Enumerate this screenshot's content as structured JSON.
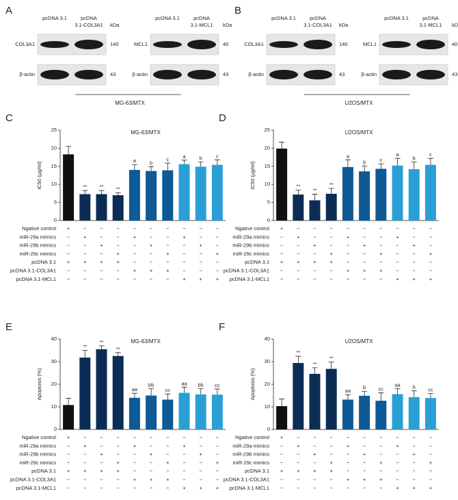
{
  "blots": [
    {
      "panel": "A",
      "title": "MG-63/MTX",
      "groups": [
        {
          "columns": [
            [
              "pcDNA 3.1"
            ],
            [
              "pcDNA",
              "3.1-COL3A1"
            ]
          ],
          "unit": "kDa",
          "rows": [
            {
              "label": "COL3A1",
              "kda": "140"
            },
            {
              "label": "β-actin",
              "kda": "43"
            }
          ]
        },
        {
          "columns": [
            [
              "pcDNA 3.1"
            ],
            [
              "pcDNA",
              "3.1-MCL1"
            ]
          ],
          "unit": "kDa",
          "rows": [
            {
              "label": "MCL1",
              "kda": "40"
            },
            {
              "label": "β-actin",
              "kda": "43"
            }
          ]
        }
      ]
    },
    {
      "panel": "B",
      "title": "U2OS/MTX",
      "groups": [
        {
          "columns": [
            [
              "pcDNA 3.1"
            ],
            [
              "pcDNA",
              "3.1-COL3A1"
            ]
          ],
          "unit": "kDa",
          "rows": [
            {
              "label": "COL3A1",
              "kda": "140"
            },
            {
              "label": "β-actin",
              "kda": "43"
            }
          ]
        },
        {
          "columns": [
            [
              "pcDNA 3.1"
            ],
            [
              "pcDNA",
              "3.1-MCL1"
            ]
          ],
          "unit": "kDa",
          "rows": [
            {
              "label": "MCL1",
              "kda": "40"
            },
            {
              "label": "β-actin",
              "kda": "43"
            }
          ]
        }
      ]
    }
  ],
  "chart_data": [
    {
      "type": "bar",
      "panel": "C",
      "title": "MG-63/MTX",
      "ylabel": "IC50 (μg/ml)",
      "ylim": [
        0,
        25
      ],
      "yticks": [
        0,
        5,
        10,
        15,
        20,
        25
      ],
      "values": [
        18.3,
        7.3,
        7.3,
        7.0,
        14.0,
        13.7,
        13.9,
        15.6,
        14.9,
        15.4
      ],
      "errors": [
        2.2,
        1.0,
        1.0,
        0.7,
        1.5,
        1.2,
        2.0,
        1.1,
        1.3,
        1.4
      ],
      "annotations": [
        null,
        "**",
        "**",
        "**",
        "a",
        "b",
        "c",
        "a",
        "b",
        "c"
      ],
      "colors": [
        "#111111",
        "#0b2d55",
        "#0b2d55",
        "#0b2d55",
        "#0e5a96",
        "#0e5a96",
        "#0e5a96",
        "#2a9fd6",
        "#2a9fd6",
        "#2a9fd6"
      ],
      "conditions": [
        {
          "name": "Ngative control",
          "signs": [
            "+",
            "−",
            "−",
            "−",
            "−",
            "−",
            "−",
            "−",
            "−",
            "−"
          ]
        },
        {
          "name": "miR-29a mimics",
          "signs": [
            "−",
            "+",
            "−",
            "−",
            "+",
            "−",
            "−",
            "+",
            "−",
            "−"
          ]
        },
        {
          "name": "miR-29b mimics",
          "signs": [
            "−",
            "−",
            "+",
            "−",
            "−",
            "+",
            "−",
            "−",
            "+",
            "−"
          ]
        },
        {
          "name": "miR-29c mimics",
          "signs": [
            "−",
            "−",
            "−",
            "+",
            "−",
            "−",
            "+",
            "−",
            "−",
            "+"
          ]
        },
        {
          "name": "pcDNA 3.1",
          "signs": [
            "+",
            "+",
            "+",
            "+",
            "−",
            "−",
            "−",
            "−",
            "−",
            "−"
          ]
        },
        {
          "name": "pcDNA 3.1-COL3A1",
          "signs": [
            "−",
            "−",
            "−",
            "−",
            "+",
            "+",
            "+",
            "−",
            "−",
            "−"
          ]
        },
        {
          "name": "pcDNA 3.1-MCL1",
          "signs": [
            "−",
            "−",
            "−",
            "−",
            "−",
            "−",
            "−",
            "+",
            "+",
            "+"
          ]
        }
      ]
    },
    {
      "type": "bar",
      "panel": "D",
      "title": "U2OS/MTX",
      "ylabel": "IC50 (μg/ml)",
      "ylim": [
        0,
        25
      ],
      "yticks": [
        0,
        5,
        10,
        15,
        20,
        25
      ],
      "values": [
        19.9,
        7.2,
        5.6,
        7.4,
        14.8,
        13.6,
        14.3,
        15.2,
        14.2,
        15.4
      ],
      "errors": [
        1.8,
        1.2,
        1.7,
        1.5,
        2.0,
        1.5,
        1.4,
        2.0,
        2.0,
        1.8
      ],
      "annotations": [
        null,
        "**",
        "**",
        "**",
        "a",
        "b",
        "c",
        "a",
        "b",
        "c"
      ],
      "colors": [
        "#111111",
        "#0b2d55",
        "#0b2d55",
        "#0b2d55",
        "#0e5a96",
        "#0e5a96",
        "#0e5a96",
        "#2a9fd6",
        "#2a9fd6",
        "#2a9fd6"
      ],
      "conditions": [
        {
          "name": "Ngative control",
          "signs": [
            "+",
            "−",
            "−",
            "−",
            "−",
            "−",
            "−",
            "−",
            "−",
            "−"
          ]
        },
        {
          "name": "miR-29a mimics",
          "signs": [
            "−",
            "+",
            "−",
            "−",
            "+",
            "−",
            "−",
            "+",
            "−",
            "−"
          ]
        },
        {
          "name": "miR-29b mimics",
          "signs": [
            "−",
            "−",
            "+",
            "−",
            "−",
            "+",
            "−",
            "−",
            "+",
            "−"
          ]
        },
        {
          "name": "miR-29c mimics",
          "signs": [
            "−",
            "−",
            "−",
            "+",
            "−",
            "−",
            "+",
            "−",
            "−",
            "+"
          ]
        },
        {
          "name": "pcDNA 3.1",
          "signs": [
            "+",
            "+",
            "+",
            "+",
            "−",
            "−",
            "−",
            "−",
            "−",
            "−"
          ]
        },
        {
          "name": "pcDNA 3.1-COL3A1",
          "signs": [
            "−",
            "−",
            "−",
            "−",
            "+",
            "+",
            "+",
            "−",
            "−",
            "−"
          ]
        },
        {
          "name": "pcDNA 3.1-MCL1",
          "signs": [
            "−",
            "−",
            "−",
            "−",
            "−",
            "−",
            "−",
            "+",
            "+",
            "+"
          ]
        }
      ]
    },
    {
      "type": "bar",
      "panel": "E",
      "title": "MG-63/MTX",
      "ylabel": "Apoptosis (%)",
      "ylim": [
        0,
        40
      ],
      "yticks": [
        0,
        10,
        20,
        30,
        40
      ],
      "values": [
        10.8,
        31.8,
        35.5,
        32.5,
        14.0,
        15.0,
        13.2,
        16.2,
        15.5,
        15.4
      ],
      "errors": [
        3.0,
        3.2,
        1.5,
        1.5,
        2.0,
        3.0,
        2.5,
        2.5,
        2.5,
        2.5
      ],
      "annotations": [
        null,
        "**",
        "**",
        "**",
        "aa",
        "bb",
        "cc",
        "aa",
        "bb",
        "cc"
      ],
      "colors": [
        "#111111",
        "#0b2d55",
        "#0b2d55",
        "#0b2d55",
        "#0e5a96",
        "#0e5a96",
        "#0e5a96",
        "#2a9fd6",
        "#2a9fd6",
        "#2a9fd6"
      ],
      "conditions": [
        {
          "name": "Ngative control",
          "signs": [
            "+",
            "−",
            "−",
            "−",
            "−",
            "−",
            "−",
            "−",
            "−",
            "−"
          ]
        },
        {
          "name": "miR-29a mimics",
          "signs": [
            "−",
            "+",
            "−",
            "−",
            "+",
            "−",
            "−",
            "+",
            "−",
            "−"
          ]
        },
        {
          "name": "miR-29b mimics",
          "signs": [
            "−",
            "−",
            "+",
            "−",
            "−",
            "+",
            "−",
            "−",
            "+",
            "−"
          ]
        },
        {
          "name": "miR-29c mimics",
          "signs": [
            "−",
            "−",
            "−",
            "+",
            "−",
            "−",
            "+",
            "−",
            "−",
            "+"
          ]
        },
        {
          "name": "pcDNA 3.1",
          "signs": [
            "+",
            "+",
            "+",
            "+",
            "−",
            "−",
            "−",
            "−",
            "−",
            "−"
          ]
        },
        {
          "name": "pcDNA 3.1-COL3A1",
          "signs": [
            "−",
            "−",
            "−",
            "−",
            "+",
            "+",
            "+",
            "−",
            "−",
            "−"
          ]
        },
        {
          "name": "pcDNA 3.1-MCL1",
          "signs": [
            "−",
            "−",
            "−",
            "−",
            "−",
            "−",
            "−",
            "+",
            "+",
            "+"
          ]
        }
      ]
    },
    {
      "type": "bar",
      "panel": "F",
      "title": "U2OS/MTX",
      "ylabel": "Apoptosis (%)",
      "ylim": [
        0,
        40
      ],
      "yticks": [
        0,
        10,
        20,
        30,
        40
      ],
      "values": [
        10.3,
        29.4,
        24.6,
        26.8,
        13.2,
        14.9,
        12.7,
        15.6,
        14.3,
        13.9
      ],
      "errors": [
        3.2,
        3.0,
        2.7,
        3.0,
        2.2,
        2.0,
        3.5,
        2.5,
        2.8,
        2.0
      ],
      "annotations": [
        null,
        "**",
        "**",
        "**",
        "aa",
        "b",
        "cc",
        "aa",
        "b",
        "cc"
      ],
      "colors": [
        "#111111",
        "#0b2d55",
        "#0b2d55",
        "#0b2d55",
        "#0e5a96",
        "#0e5a96",
        "#0e5a96",
        "#2a9fd6",
        "#2a9fd6",
        "#2a9fd6"
      ],
      "conditions": [
        {
          "name": "Ngative control",
          "signs": [
            "+",
            "−",
            "−",
            "−",
            "−",
            "−",
            "−",
            "−",
            "−",
            "−"
          ]
        },
        {
          "name": "miR-29a mimics",
          "signs": [
            "−",
            "+",
            "−",
            "−",
            "+",
            "−",
            "−",
            "+",
            "−",
            "−"
          ]
        },
        {
          "name": "miR-29b mimics",
          "signs": [
            "−",
            "−",
            "+",
            "−",
            "−",
            "+",
            "−",
            "−",
            "+",
            "−"
          ]
        },
        {
          "name": "miR-29c mimics",
          "signs": [
            "−",
            "−",
            "−",
            "+",
            "−",
            "−",
            "+",
            "−",
            "−",
            "+"
          ]
        },
        {
          "name": "pcDNA 3.1",
          "signs": [
            "+",
            "+",
            "+",
            "+",
            "−",
            "−",
            "−",
            "−",
            "−",
            "−"
          ]
        },
        {
          "name": "pcDNA 3.1-COL3A1",
          "signs": [
            "−",
            "−",
            "−",
            "−",
            "+",
            "+",
            "+",
            "−",
            "−",
            "−"
          ]
        },
        {
          "name": "pcDNA 3.1-MCL1",
          "signs": [
            "−",
            "−",
            "−",
            "−",
            "−",
            "−",
            "−",
            "+",
            "+",
            "+"
          ]
        }
      ]
    }
  ]
}
